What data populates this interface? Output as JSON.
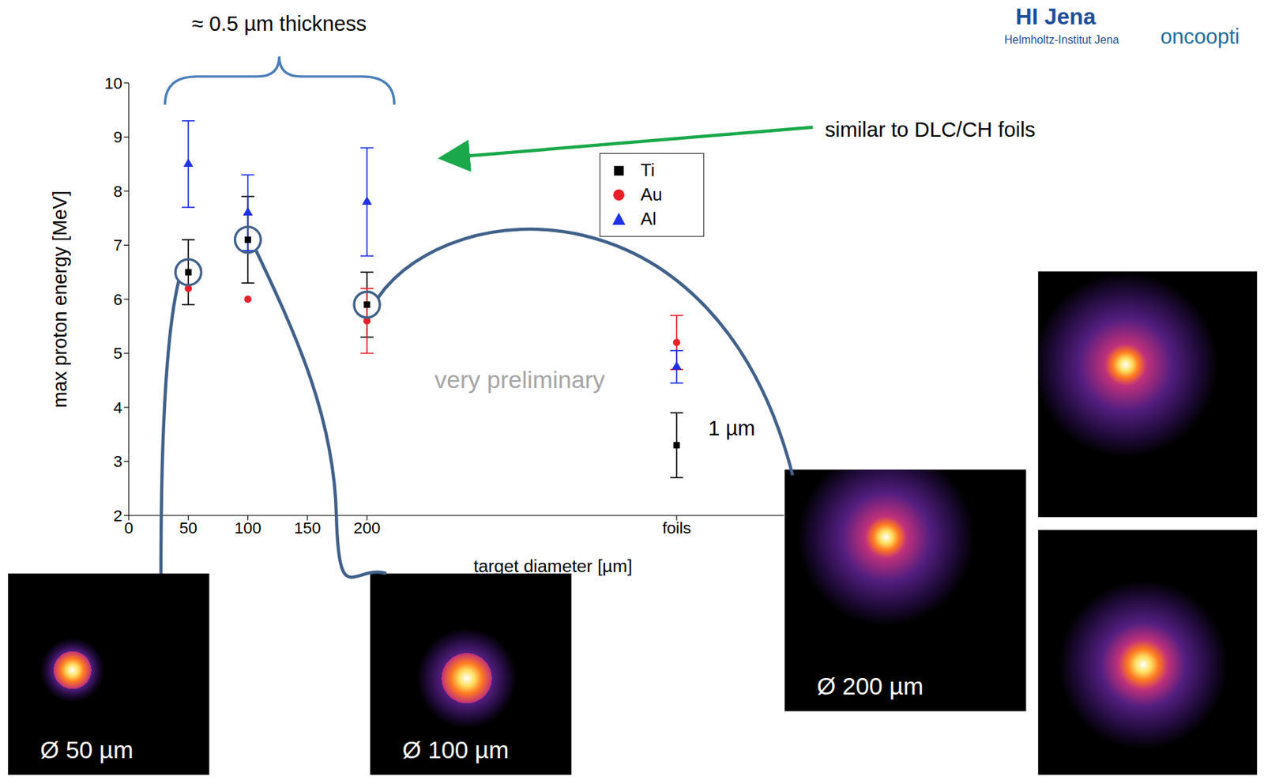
{
  "chart_data": {
    "type": "scatter",
    "xlabel": "target diameter [µm]",
    "ylabel": "max proton energy [MeV]",
    "x": [
      50,
      100,
      200,
      460
    ],
    "xlim": [
      0,
      550
    ],
    "xticks": [
      0,
      50,
      100,
      150,
      200,
      {
        "value": 460,
        "label": "foils"
      }
    ],
    "ylim": [
      2,
      10
    ],
    "yticks": [
      2,
      3,
      4,
      5,
      6,
      7,
      8,
      9,
      10
    ],
    "grid": false,
    "legend": "upper right",
    "series": [
      {
        "name": "Ti",
        "color": "#000000",
        "marker": "square",
        "values": [
          6.5,
          7.1,
          5.9,
          3.3
        ],
        "errors": [
          0.6,
          0.8,
          0.6,
          0.6
        ]
      },
      {
        "name": "Au",
        "color": "#e8202a",
        "marker": "circle",
        "values": [
          6.2,
          6.0,
          5.6,
          5.2
        ],
        "errors": [
          null,
          null,
          0.6,
          0.5
        ]
      },
      {
        "name": "Al",
        "color": "#1f30e6",
        "marker": "triangle",
        "values": [
          8.5,
          7.6,
          7.8,
          4.75
        ],
        "errors": [
          0.8,
          0.7,
          1.0,
          0.3
        ]
      }
    ],
    "annotations": [
      "≈ 0.5 µm thickness",
      "similar to DLC/CH foils",
      "very preliminary",
      "1 µm",
      "Ø 50 µm",
      "Ø 100 µm",
      "Ø 200 µm",
      "HI Jena",
      "Helmholtz-Institut Jena",
      "oncoopti"
    ]
  }
}
